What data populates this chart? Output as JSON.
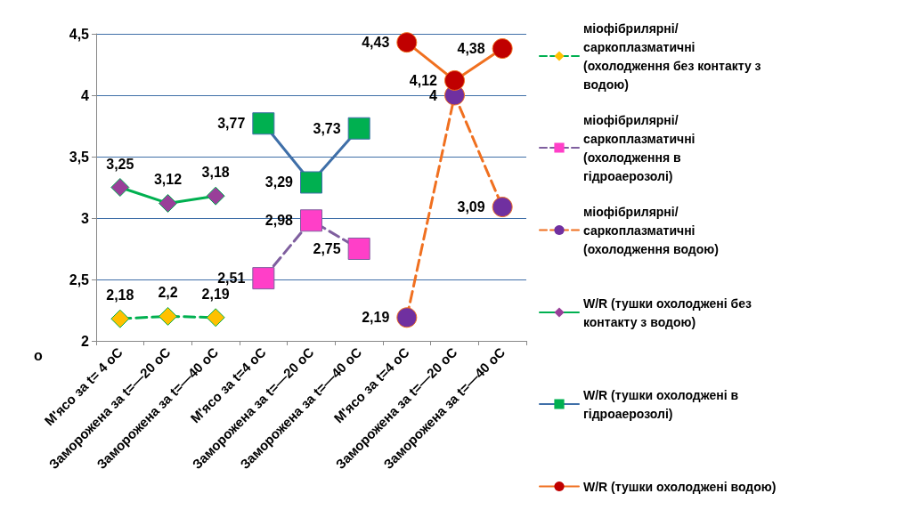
{
  "chart_data": {
    "type": "line",
    "ylabel": "о",
    "categories": [
      "М'ясо за t= 4 оС",
      "Заморожена за t=—20 оС",
      "Заморожена за t=—40 оС",
      "М'ясо за t=4 оС",
      "Заморожена за t=—20 оС",
      "Заморожена за t=—40 оС",
      "М'ясо за t=4 оС",
      "Заморожена за t=—20 оС",
      "Заморожена за t=—40 оС"
    ],
    "ylim": [
      2,
      4.5
    ],
    "yticks": [
      {
        "value": 2,
        "label": "2"
      },
      {
        "value": 2.5,
        "label": "2,5"
      },
      {
        "value": 3,
        "label": "3"
      },
      {
        "value": 3.5,
        "label": "3,5"
      },
      {
        "value": 4,
        "label": "4"
      },
      {
        "value": 4.5,
        "label": "4,5"
      }
    ],
    "grid": "y",
    "legend": "right",
    "series": [
      {
        "name": "міофібрилярні/саркоплазматичні (охолодження без контакту з водою)",
        "color": "#00b050",
        "colors": [
          "#ffc000",
          "#ffc000",
          "#ffc000",
          null,
          null,
          null,
          null,
          null,
          null
        ],
        "marker": "diamond",
        "line_style": "dashed",
        "values": [
          2.18,
          2.2,
          2.19,
          null,
          null,
          null,
          null,
          null,
          null
        ],
        "value_labels": [
          "2,18",
          "2,2",
          "2,19",
          null,
          null,
          null,
          null,
          null,
          null
        ]
      },
      {
        "name": "міофібрилярні/саркоплазматичні (охолодження в гідроаерозолі)",
        "color": "#7f5f9f",
        "colors": [
          null,
          null,
          null,
          "#ff3fc8",
          "#ff3fc8",
          "#ff3fc8",
          null,
          null,
          null
        ],
        "marker": "square",
        "line_style": "dashed",
        "values": [
          null,
          null,
          null,
          2.51,
          2.98,
          2.75,
          null,
          null,
          null
        ],
        "value_labels": [
          null,
          null,
          null,
          "2,51",
          "2,98",
          "2,75",
          null,
          null,
          null
        ]
      },
      {
        "name": "міофібрилярні/саркоплазматичні (охолодження водою)",
        "color": "#f07020",
        "colors": [
          null,
          null,
          null,
          null,
          null,
          null,
          "#7030a0",
          "#7030a0",
          "#7030a0"
        ],
        "marker": "circle",
        "line_style": "dashed",
        "values": [
          null,
          null,
          null,
          null,
          null,
          null,
          2.19,
          4,
          3.09
        ],
        "value_labels": [
          null,
          null,
          null,
          null,
          null,
          null,
          "2,19",
          "4",
          "3,09"
        ]
      },
      {
        "name": "W/R (тушки охолоджені без контакту з водою)",
        "color": "#00b050",
        "colors": [
          "#993f99",
          "#993f99",
          "#993f99",
          null,
          null,
          null,
          null,
          null,
          null
        ],
        "marker": "diamond",
        "line_style": "solid",
        "values": [
          3.25,
          3.12,
          3.18,
          null,
          null,
          null,
          null,
          null,
          null
        ],
        "value_labels": [
          "3,25",
          "3,12",
          "3,18",
          null,
          null,
          null,
          null,
          null,
          null
        ]
      },
      {
        "name": "W/R (тушки охолоджені в гідроаерозолі)",
        "color": "#3f6fa8",
        "colors": [
          null,
          null,
          null,
          "#00b050",
          "#00b050",
          "#00b050",
          null,
          null,
          null
        ],
        "marker": "square",
        "line_style": "solid",
        "values": [
          null,
          null,
          null,
          3.77,
          3.29,
          3.73,
          null,
          null,
          null
        ],
        "value_labels": [
          null,
          null,
          null,
          "3,77",
          "3,29",
          "3,73",
          null,
          null,
          null
        ]
      },
      {
        "name": "W/R (тушки охолоджені водою)",
        "color": "#f07020",
        "colors": [
          null,
          null,
          null,
          null,
          null,
          null,
          "#c00000",
          "#c00000",
          "#c00000"
        ],
        "marker": "circle",
        "line_style": "solid",
        "values": [
          null,
          null,
          null,
          null,
          null,
          null,
          4.43,
          4.12,
          4.38
        ],
        "value_labels": [
          null,
          null,
          null,
          null,
          null,
          null,
          "4,43",
          "4,12",
          "4,38"
        ]
      }
    ]
  }
}
